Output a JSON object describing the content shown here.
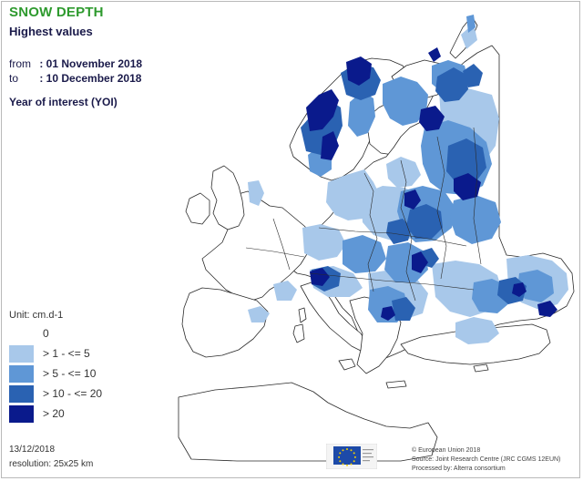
{
  "header": {
    "title": "SNOW DEPTH",
    "subtitle": "Highest values",
    "from_label": "from",
    "from_value": ": 01 November 2018",
    "to_label": "to",
    "to_value": ": 10 December 2018",
    "yoi_label": "Year of interest (YOI)"
  },
  "legend": {
    "unit": "Unit: cm.d-1",
    "items": [
      {
        "label": "0",
        "color": "#ffffff"
      },
      {
        "label": "> 1 - <= 5",
        "color": "#a8c8ea"
      },
      {
        "label": "> 5 - <= 10",
        "color": "#5f97d6"
      },
      {
        "label": "> 10 - <= 20",
        "color": "#2a62b2"
      },
      {
        "label": "> 20",
        "color": "#0a1a8c"
      }
    ]
  },
  "footer": {
    "date": "13/12/2018",
    "resolution": "resolution:  25x25 km",
    "credit_line1": "© European Union 2018",
    "credit_line2": "Source: Joint Research Centre (JRC CGMS 12EUN)",
    "credit_line3": "Processed by: Alterra consortium"
  },
  "colors": {
    "land": "#ffffff",
    "border": "#333333",
    "class_1_5": "#a8c8ea",
    "class_5_10": "#5f97d6",
    "class_10_20": "#2a62b2",
    "class_over_20": "#0a1a8c",
    "title_green": "#2e9a2e"
  }
}
